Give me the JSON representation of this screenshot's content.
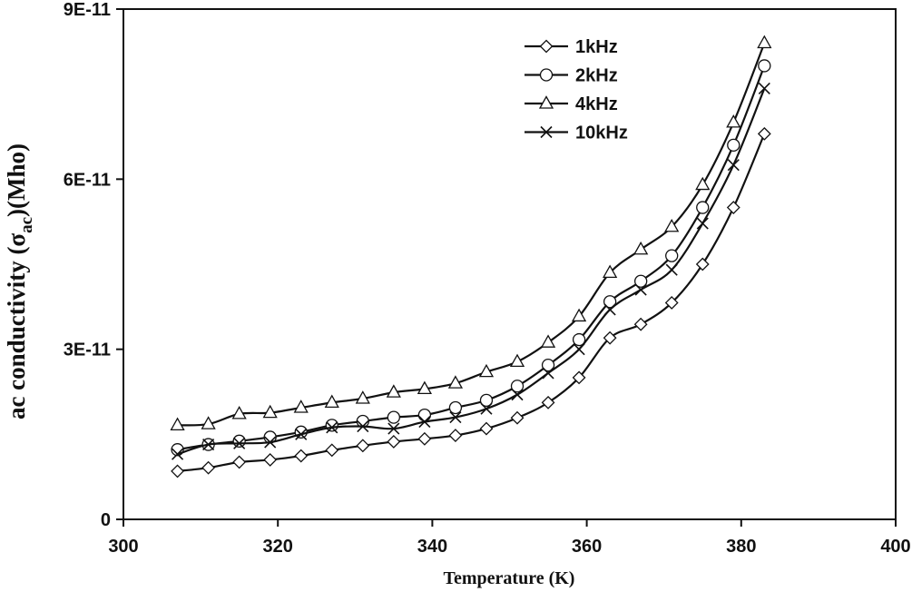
{
  "chart_data": {
    "type": "line",
    "xlabel": "Temperature (K)",
    "ylabel": {
      "prefix": "ac conductivity (",
      "symbol": "σ",
      "subscript": "ac",
      "suffix": ")(Mho)"
    },
    "xlim": [
      300,
      400
    ],
    "ylim": [
      0,
      9e-11
    ],
    "x_ticks": [
      300,
      320,
      340,
      360,
      380,
      400
    ],
    "x_tick_labels": [
      "300",
      "320",
      "340",
      "360",
      "380",
      "400"
    ],
    "y_ticks": [
      0,
      3e-11,
      6e-11,
      9e-11
    ],
    "y_tick_labels": [
      "0",
      "3E-11",
      "6E-11",
      "9E-11"
    ],
    "grid": false,
    "legend_position": "top-right",
    "x": [
      307,
      311,
      315,
      319,
      323,
      327,
      331,
      335,
      339,
      343,
      347,
      351,
      355,
      359,
      363,
      367,
      371,
      375,
      379,
      383
    ],
    "series": [
      {
        "name": "1kHz",
        "marker": "diamond",
        "values": [
          8.5e-12,
          9.1e-12,
          1.01e-11,
          1.05e-11,
          1.12e-11,
          1.22e-11,
          1.3e-11,
          1.37e-11,
          1.42e-11,
          1.48e-11,
          1.6e-11,
          1.79e-11,
          2.06e-11,
          2.5e-11,
          3.2e-11,
          3.44e-11,
          3.82e-11,
          4.5e-11,
          5.5e-11,
          6.8e-11
        ]
      },
      {
        "name": "2kHz",
        "marker": "circle",
        "values": [
          1.23e-11,
          1.32e-11,
          1.38e-11,
          1.45e-11,
          1.54e-11,
          1.66e-11,
          1.73e-11,
          1.8e-11,
          1.84e-11,
          1.97e-11,
          2.1e-11,
          2.35e-11,
          2.72e-11,
          3.17e-11,
          3.84e-11,
          4.2e-11,
          4.65e-11,
          5.5e-11,
          6.6e-11,
          8e-11
        ]
      },
      {
        "name": "4kHz",
        "marker": "triangle",
        "values": [
          1.66e-11,
          1.68e-11,
          1.86e-11,
          1.88e-11,
          1.97e-11,
          2.06e-11,
          2.13e-11,
          2.24e-11,
          2.3e-11,
          2.4e-11,
          2.6e-11,
          2.78e-11,
          3.12e-11,
          3.58e-11,
          4.35e-11,
          4.76e-11,
          5.16e-11,
          5.9e-11,
          7e-11,
          8.4e-11
        ]
      },
      {
        "name": "10kHz",
        "marker": "cross",
        "values": [
          1.15e-11,
          1.32e-11,
          1.34e-11,
          1.36e-11,
          1.5e-11,
          1.62e-11,
          1.64e-11,
          1.6e-11,
          1.72e-11,
          1.8e-11,
          1.95e-11,
          2.2e-11,
          2.58e-11,
          3e-11,
          3.7e-11,
          4.05e-11,
          4.4e-11,
          5.22e-11,
          6.25e-11,
          7.6e-11
        ]
      }
    ]
  }
}
